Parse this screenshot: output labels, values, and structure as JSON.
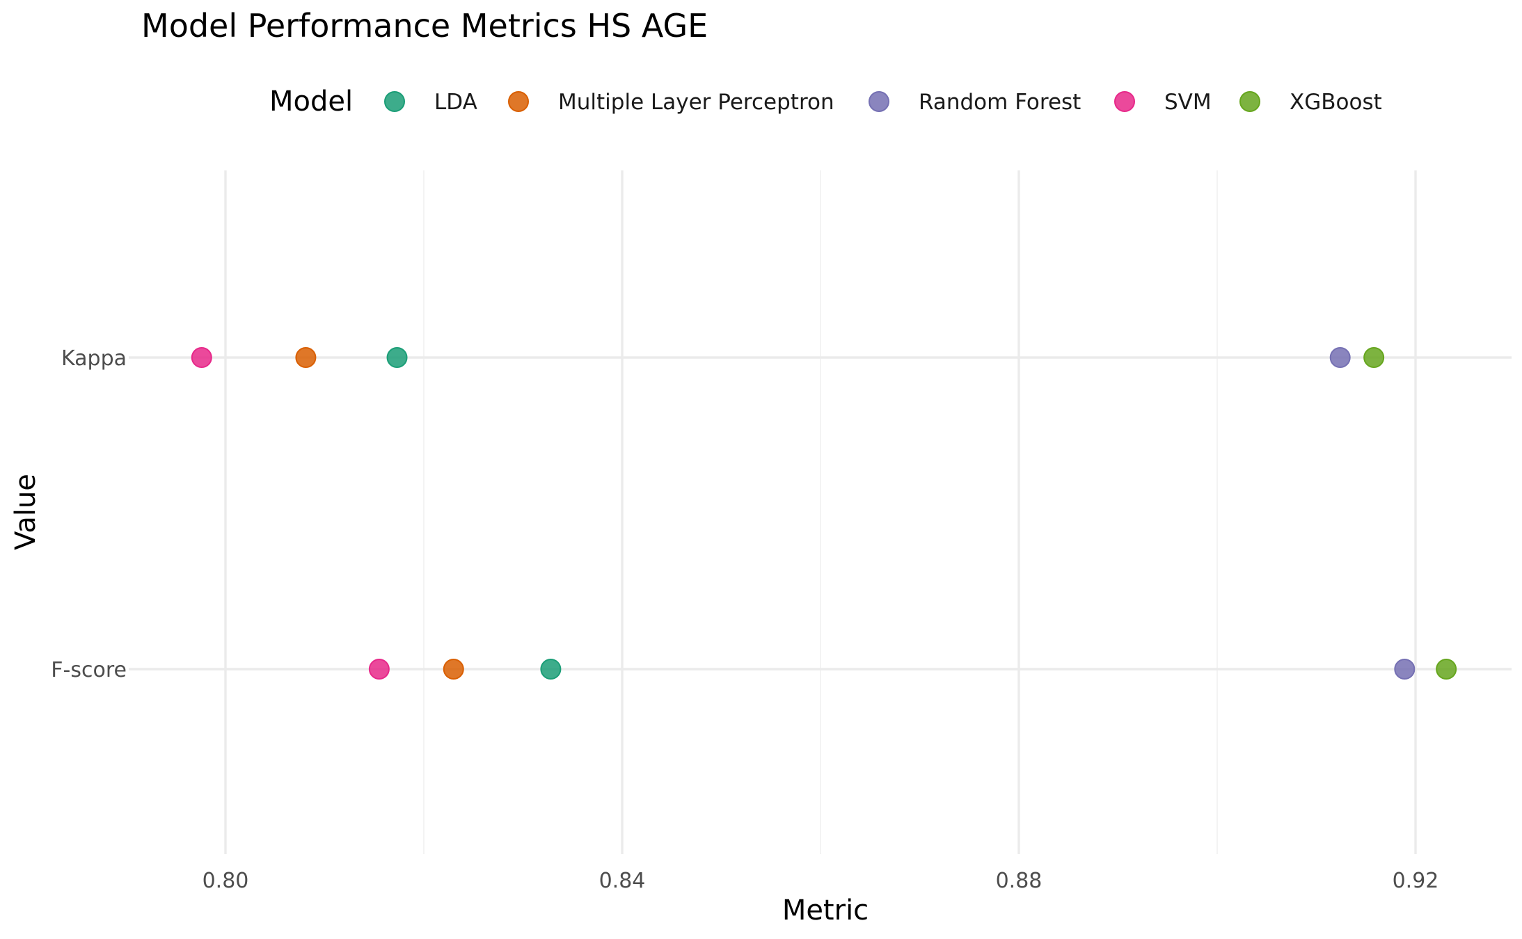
{
  "chart_data": {
    "type": "scatter",
    "title": "Model Performance Metrics HS AGE",
    "xlabel": "Metric",
    "ylabel": "Value",
    "xlim": [
      0.79,
      0.9295
    ],
    "x_ticks": [
      0.8,
      0.84,
      0.88,
      0.92
    ],
    "x_tick_labels": [
      "0.80",
      "0.84",
      "0.88",
      "0.92"
    ],
    "categories": [
      "F-score",
      "Kappa"
    ],
    "legend": {
      "title": "Model",
      "position": "top"
    },
    "grid": true,
    "series": [
      {
        "name": "LDA",
        "color": "#1B9E77",
        "values": [
          {
            "y": "Kappa",
            "x": 0.8173
          },
          {
            "y": "F-score",
            "x": 0.8328
          }
        ]
      },
      {
        "name": "Multiple Layer Perceptron",
        "color": "#D95F02",
        "values": [
          {
            "y": "Kappa",
            "x": 0.8081
          },
          {
            "y": "F-score",
            "x": 0.823
          }
        ]
      },
      {
        "name": "Random Forest",
        "color": "#7570B3",
        "values": [
          {
            "y": "Kappa",
            "x": 0.9124
          },
          {
            "y": "F-score",
            "x": 0.9189
          }
        ]
      },
      {
        "name": "SVM",
        "color": "#E7298A",
        "values": [
          {
            "y": "Kappa",
            "x": 0.7976
          },
          {
            "y": "F-score",
            "x": 0.8155
          }
        ]
      },
      {
        "name": "XGBoost",
        "color": "#66A61E",
        "values": [
          {
            "y": "Kappa",
            "x": 0.9158
          },
          {
            "y": "F-score",
            "x": 0.9231
          }
        ]
      }
    ]
  }
}
